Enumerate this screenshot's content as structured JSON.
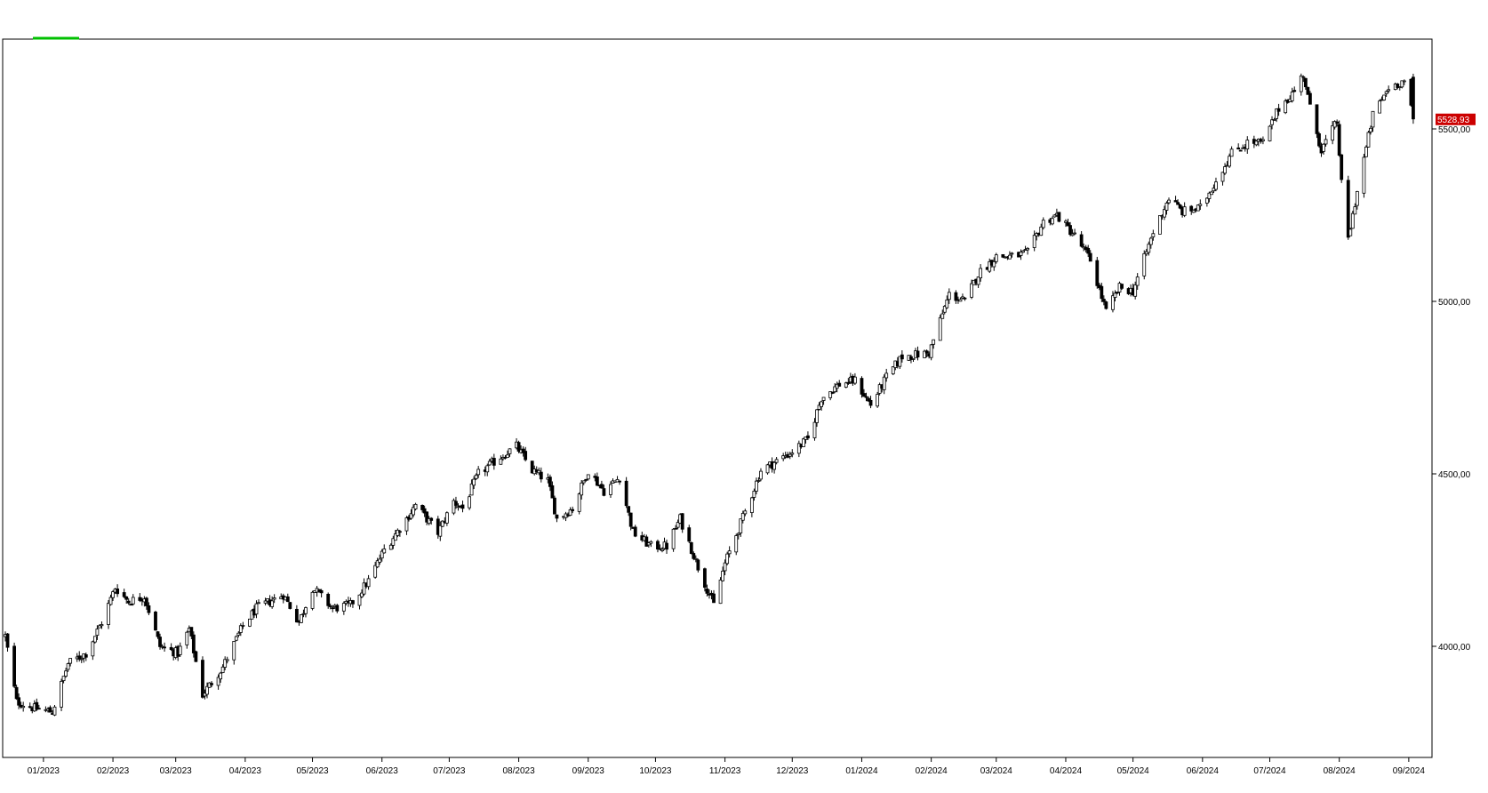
{
  "chart_data": {
    "type": "candlestick",
    "title": "",
    "xlabel": "",
    "ylabel": "",
    "ylim": [
      3750,
      5800
    ],
    "yticks": [
      4000,
      4500,
      5000,
      5500
    ],
    "ytick_labels": [
      "4000,00",
      "4500,00",
      "5000,00",
      "5500,00"
    ],
    "x_start": "2022-12-15",
    "x_end": "2024-09-07",
    "xticks": [
      {
        "date": "2023-01-01",
        "label": "01/2023"
      },
      {
        "date": "2023-02-01",
        "label": "02/2023"
      },
      {
        "date": "2023-03-01",
        "label": "03/2023"
      },
      {
        "date": "2023-04-01",
        "label": "04/2023"
      },
      {
        "date": "2023-05-01",
        "label": "05/2023"
      },
      {
        "date": "2023-06-01",
        "label": "06/2023"
      },
      {
        "date": "2023-07-01",
        "label": "07/2023"
      },
      {
        "date": "2023-08-01",
        "label": "08/2023"
      },
      {
        "date": "2023-09-01",
        "label": "09/2023"
      },
      {
        "date": "2023-10-01",
        "label": "10/2023"
      },
      {
        "date": "2023-11-01",
        "label": "11/2023"
      },
      {
        "date": "2023-12-01",
        "label": "12/2023"
      },
      {
        "date": "2024-01-01",
        "label": "01/2024"
      },
      {
        "date": "2024-02-01",
        "label": "02/2024"
      },
      {
        "date": "2024-03-01",
        "label": "03/2024"
      },
      {
        "date": "2024-04-01",
        "label": "04/2024"
      },
      {
        "date": "2024-05-01",
        "label": "05/2024"
      },
      {
        "date": "2024-06-01",
        "label": "06/2024"
      },
      {
        "date": "2024-07-01",
        "label": "07/2024"
      },
      {
        "date": "2024-08-01",
        "label": "08/2024"
      },
      {
        "date": "2024-09-01",
        "label": "09/2024"
      }
    ],
    "last_price": 5528.93,
    "last_price_label": "5528,93",
    "last_price_color": "#cc0000",
    "grid": false,
    "legend": "none",
    "close_path": [
      [
        "2022-12-15",
        4030
      ],
      [
        "2022-12-20",
        3840
      ],
      [
        "2022-12-28",
        3820
      ],
      [
        "2023-01-05",
        3810
      ],
      [
        "2023-01-12",
        3950
      ],
      [
        "2023-01-20",
        3980
      ],
      [
        "2023-01-27",
        4070
      ],
      [
        "2023-02-02",
        4170
      ],
      [
        "2023-02-08",
        4130
      ],
      [
        "2023-02-15",
        4145
      ],
      [
        "2023-02-22",
        4000
      ],
      [
        "2023-03-02",
        3980
      ],
      [
        "2023-03-07",
        4050
      ],
      [
        "2023-03-13",
        3860
      ],
      [
        "2023-03-22",
        3940
      ],
      [
        "2023-03-31",
        4060
      ],
      [
        "2023-04-06",
        4110
      ],
      [
        "2023-04-18",
        4150
      ],
      [
        "2023-04-25",
        4070
      ],
      [
        "2023-05-01",
        4170
      ],
      [
        "2023-05-10",
        4110
      ],
      [
        "2023-05-18",
        4120
      ],
      [
        "2023-05-26",
        4190
      ],
      [
        "2023-06-02",
        4280
      ],
      [
        "2023-06-12",
        4370
      ],
      [
        "2023-06-16",
        4410
      ],
      [
        "2023-06-26",
        4330
      ],
      [
        "2023-07-03",
        4420
      ],
      [
        "2023-07-07",
        4400
      ],
      [
        "2023-07-14",
        4500
      ],
      [
        "2023-07-24",
        4550
      ],
      [
        "2023-07-31",
        4580
      ],
      [
        "2023-08-07",
        4510
      ],
      [
        "2023-08-14",
        4480
      ],
      [
        "2023-08-18",
        4370
      ],
      [
        "2023-08-25",
        4400
      ],
      [
        "2023-09-01",
        4510
      ],
      [
        "2023-09-08",
        4450
      ],
      [
        "2023-09-15",
        4490
      ],
      [
        "2023-09-21",
        4330
      ],
      [
        "2023-09-29",
        4290
      ],
      [
        "2023-10-06",
        4290
      ],
      [
        "2023-10-12",
        4370
      ],
      [
        "2023-10-20",
        4230
      ],
      [
        "2023-10-27",
        4120
      ],
      [
        "2023-11-01",
        4240
      ],
      [
        "2023-11-10",
        4390
      ],
      [
        "2023-11-17",
        4510
      ],
      [
        "2023-11-30",
        4560
      ],
      [
        "2023-12-08",
        4600
      ],
      [
        "2023-12-14",
        4720
      ],
      [
        "2023-12-22",
        4760
      ],
      [
        "2023-12-29",
        4770
      ],
      [
        "2024-01-05",
        4700
      ],
      [
        "2024-01-12",
        4780
      ],
      [
        "2024-01-19",
        4840
      ],
      [
        "2024-01-31",
        4850
      ],
      [
        "2024-02-09",
        5020
      ],
      [
        "2024-02-16",
        5000
      ],
      [
        "2024-02-22",
        5080
      ],
      [
        "2024-03-01",
        5130
      ],
      [
        "2024-03-08",
        5130
      ],
      [
        "2024-03-15",
        5140
      ],
      [
        "2024-03-22",
        5230
      ],
      [
        "2024-03-28",
        5250
      ],
      [
        "2024-04-05",
        5190
      ],
      [
        "2024-04-12",
        5120
      ],
      [
        "2024-04-19",
        4970
      ],
      [
        "2024-04-25",
        5040
      ],
      [
        "2024-05-01",
        5030
      ],
      [
        "2024-05-10",
        5200
      ],
      [
        "2024-05-17",
        5300
      ],
      [
        "2024-05-23",
        5260
      ],
      [
        "2024-05-31",
        5270
      ],
      [
        "2024-06-07",
        5350
      ],
      [
        "2024-06-14",
        5430
      ],
      [
        "2024-06-21",
        5460
      ],
      [
        "2024-06-28",
        5460
      ],
      [
        "2024-07-05",
        5560
      ],
      [
        "2024-07-12",
        5610
      ],
      [
        "2024-07-16",
        5660
      ],
      [
        "2024-07-19",
        5560
      ],
      [
        "2024-07-24",
        5440
      ],
      [
        "2024-07-31",
        5520
      ],
      [
        "2024-08-02",
        5340
      ],
      [
        "2024-08-05",
        5180
      ],
      [
        "2024-08-09",
        5320
      ],
      [
        "2024-08-16",
        5540
      ],
      [
        "2024-08-23",
        5620
      ],
      [
        "2024-08-30",
        5640
      ],
      [
        "2024-09-03",
        5528.93
      ]
    ]
  }
}
